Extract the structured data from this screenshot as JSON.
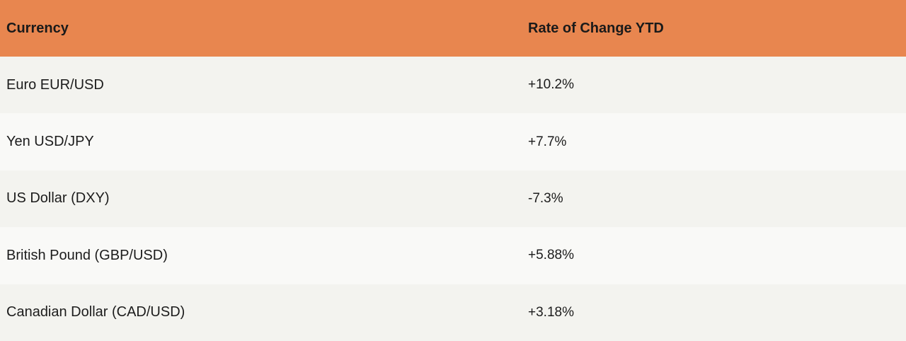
{
  "colors": {
    "header_bg": "#e8864f",
    "row_odd_bg": "#f3f3ef",
    "row_even_bg": "#f9f9f7",
    "text": "#1c1c1c"
  },
  "table": {
    "headers": [
      "Currency",
      "Rate of Change YTD"
    ],
    "rows": [
      [
        "Euro EUR/USD",
        "+10.2%"
      ],
      [
        "Yen USD/JPY",
        "+7.7%"
      ],
      [
        "US Dollar (DXY)",
        "-7.3%"
      ],
      [
        "British Pound (GBP/USD)",
        "+5.88%"
      ],
      [
        "Canadian Dollar (CAD/USD)",
        "+3.18%"
      ]
    ]
  }
}
